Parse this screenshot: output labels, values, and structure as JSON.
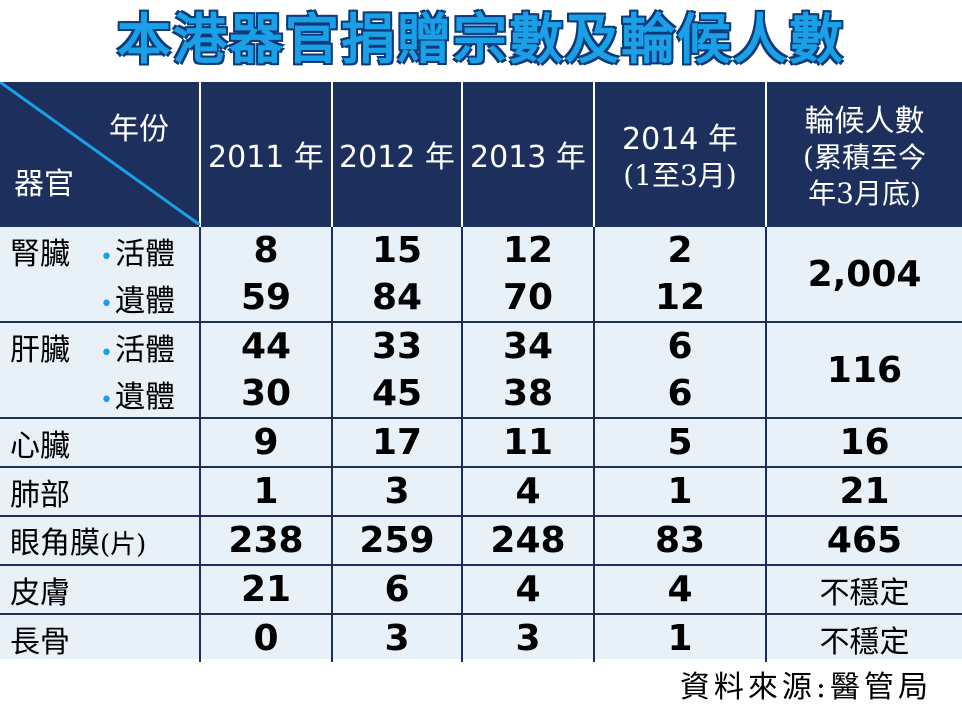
{
  "title": "本港器官捐贈宗數及輪候人數",
  "header": {
    "corner_top": "年份",
    "corner_bottom": "器官",
    "years": [
      "2011 年",
      "2012 年",
      "2013 年"
    ],
    "year_2014": "2014 年",
    "year_2014_note": "(1至3月)",
    "waiting_title": "輪候人數",
    "waiting_note_line1": "(累積至今",
    "waiting_note_line2": "年3月底)"
  },
  "chart_data": {
    "type": "table",
    "title": "本港器官捐贈宗數及輪候人數",
    "columns": [
      "2011 年",
      "2012 年",
      "2013 年",
      "2014 年(1至3月)",
      "輪候人數(累積至今年3月底)"
    ],
    "rows": [
      {
        "organ": "腎臟",
        "sub": "活體",
        "values": [
          "8",
          "15",
          "12",
          "2"
        ],
        "waiting": "2,004"
      },
      {
        "organ": "",
        "sub": "遺體",
        "values": [
          "59",
          "84",
          "70",
          "12"
        ]
      },
      {
        "organ": "肝臟",
        "sub": "活體",
        "values": [
          "44",
          "33",
          "34",
          "6"
        ],
        "waiting": "116"
      },
      {
        "organ": "",
        "sub": "遺體",
        "values": [
          "30",
          "45",
          "38",
          "6"
        ]
      },
      {
        "organ": "心臟",
        "sub": "",
        "values": [
          "9",
          "17",
          "11",
          "5"
        ],
        "waiting": "16"
      },
      {
        "organ": "肺部",
        "sub": "",
        "values": [
          "1",
          "3",
          "4",
          "1"
        ],
        "waiting": "21"
      },
      {
        "organ": "眼角膜",
        "sub": "(片)",
        "values": [
          "238",
          "259",
          "248",
          "83"
        ],
        "waiting": "465"
      },
      {
        "organ": "皮膚",
        "sub": "",
        "values": [
          "21",
          "6",
          "4",
          "4"
        ],
        "waiting": "不穩定"
      },
      {
        "organ": "長骨",
        "sub": "",
        "values": [
          "0",
          "3",
          "3",
          "1"
        ],
        "waiting": "不穩定"
      }
    ]
  },
  "source": "資料來源:醫管局",
  "colors": {
    "header_bg": "#1d2f5d",
    "title": "#1aa0e6",
    "title_outline": "#0e3a7a",
    "dot": "#1aa0e6",
    "body_bg": "#e8f0f8"
  }
}
